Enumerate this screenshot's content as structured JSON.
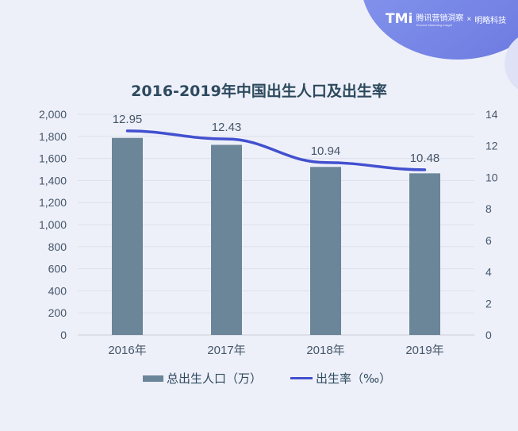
{
  "logo": {
    "brand": "TMi",
    "text": "腾讯营销洞察",
    "sub": "Tencent Marketing Insight",
    "times": "×",
    "partner": "明略科技"
  },
  "chart_data": {
    "type": "bar+line",
    "title": "2016-2019年中国出生人口及出生率",
    "categories": [
      "2016年",
      "2017年",
      "2018年",
      "2019年"
    ],
    "series": [
      {
        "name": "总出生人口（万）",
        "type": "bar",
        "axis": "left",
        "values": [
          1786,
          1723,
          1523,
          1465
        ],
        "color": "#6b8599"
      },
      {
        "name": "出生率（‰）",
        "type": "line",
        "axis": "right",
        "values": [
          12.95,
          12.43,
          10.94,
          10.48
        ],
        "labels": [
          "12.95",
          "12.43",
          "10.94",
          "10.48"
        ],
        "color": "#4250cf"
      }
    ],
    "y_left": {
      "range": [
        0,
        2000
      ],
      "ticks": [
        "0",
        "200",
        "400",
        "600",
        "800",
        "1,000",
        "1,200",
        "1,400",
        "1,600",
        "1,800",
        "2,000"
      ]
    },
    "y_right": {
      "range": [
        0,
        14
      ],
      "ticks": [
        "0",
        "2",
        "4",
        "6",
        "8",
        "10",
        "12",
        "14"
      ]
    },
    "grid": true,
    "legend": "bottom"
  }
}
